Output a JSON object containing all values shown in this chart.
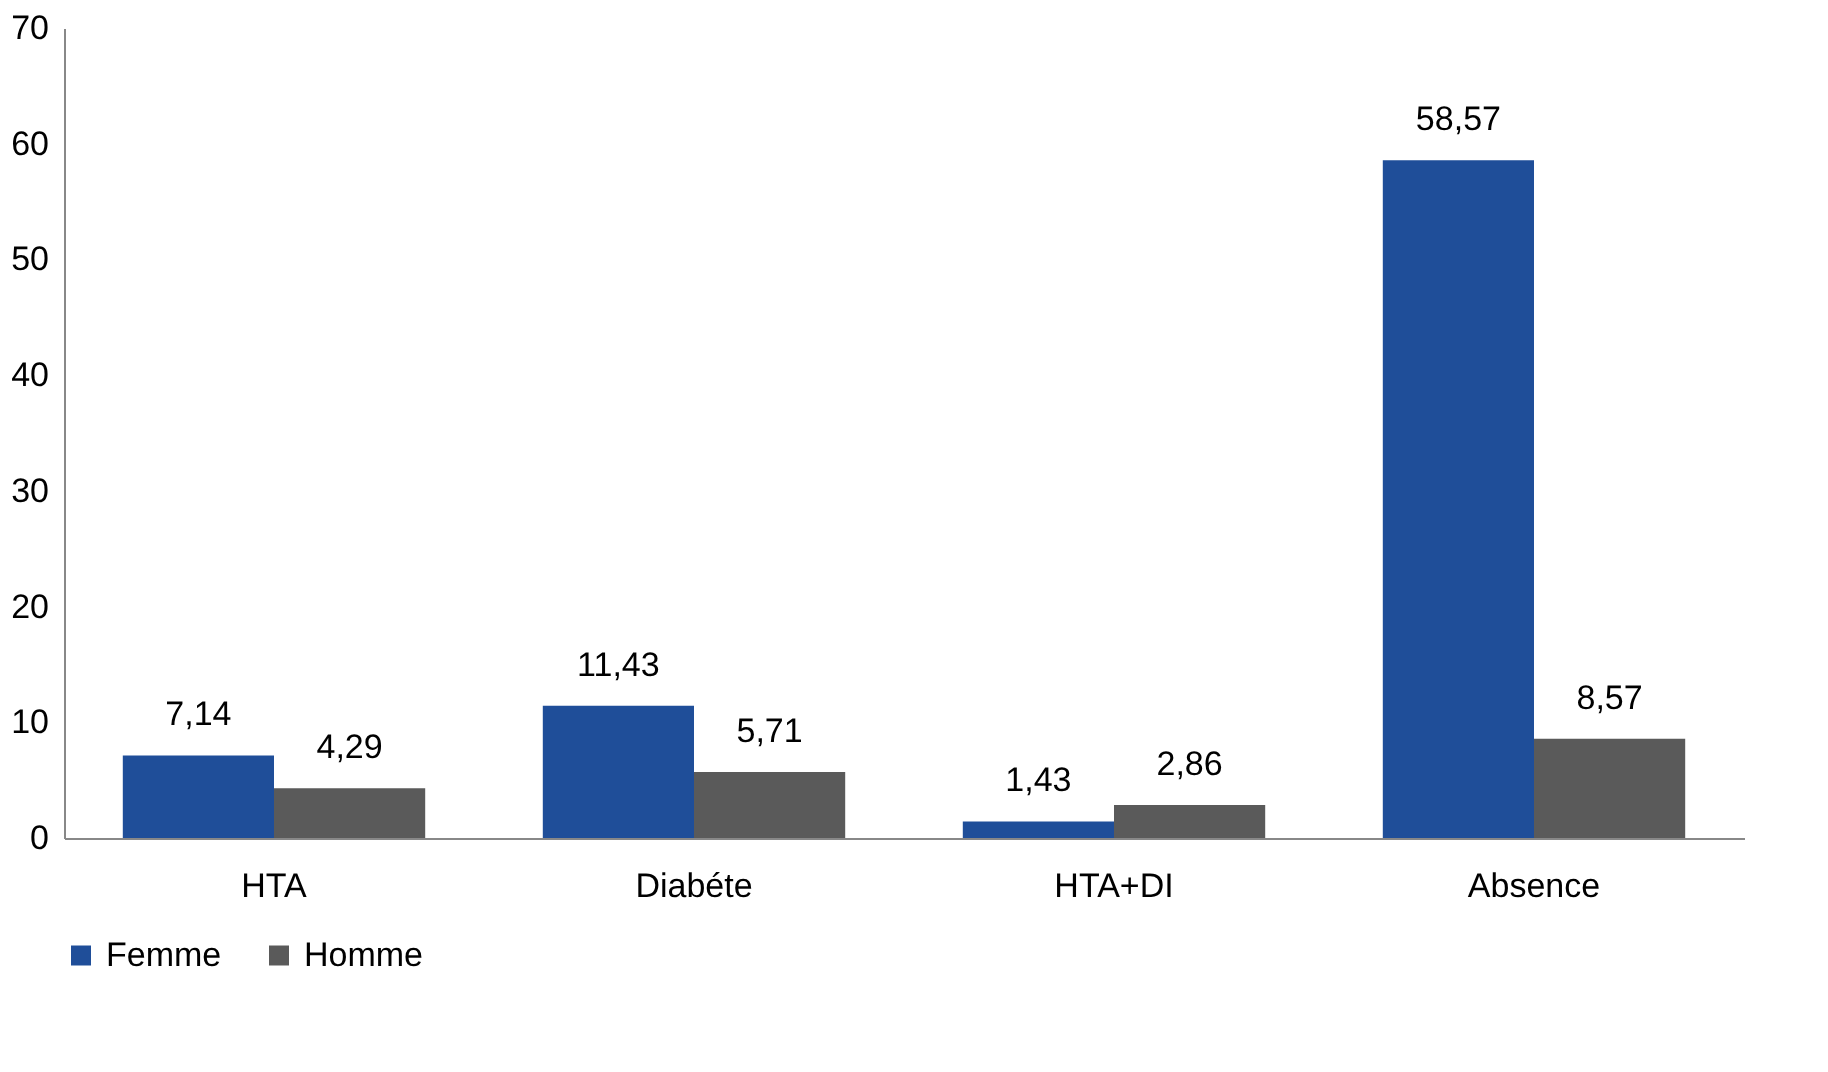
{
  "chart_data": {
    "type": "bar",
    "categories": [
      "HTA",
      "Diabéte",
      "HTA+DI",
      "Absence"
    ],
    "series": [
      {
        "name": "Femme",
        "color": "#1f4e99",
        "values": [
          7.14,
          11.43,
          1.43,
          58.57
        ],
        "value_labels": [
          "7,14",
          "11,43",
          "1,43",
          "58,57"
        ]
      },
      {
        "name": "Homme",
        "color": "#5a5a5a",
        "values": [
          4.29,
          5.71,
          2.86,
          8.57
        ],
        "value_labels": [
          "4,29",
          "5,71",
          "2,86",
          "8,57"
        ]
      }
    ],
    "ylim": [
      0,
      70
    ],
    "yticks": [
      0,
      10,
      20,
      30,
      40,
      50,
      60,
      70
    ],
    "grid": false,
    "legend": "bottom"
  }
}
